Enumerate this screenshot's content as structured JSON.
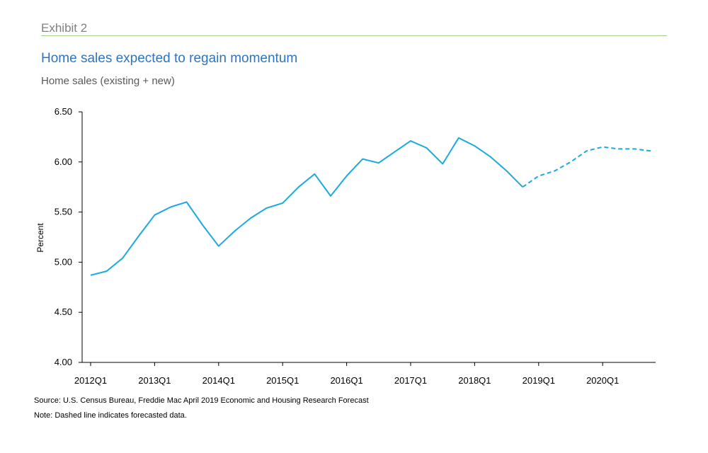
{
  "header": {
    "exhibit": "Exhibit 2",
    "title": "Home sales expected to regain momentum",
    "subtitle": "Home sales (existing + new)"
  },
  "footer": {
    "source": "Source: U.S. Census Bureau, Freddie Mac April 2019 Economic and Housing Research Forecast",
    "note": "Note: Dashed line indicates forecasted data."
  },
  "colors": {
    "line": "#1ba9e1",
    "rule": "#a8cf8e",
    "title": "#2f74c0"
  },
  "chart_data": {
    "type": "line",
    "title": "Home sales expected to regain momentum",
    "subtitle": "Home sales (existing + new)",
    "xlabel": "",
    "ylabel": "Percent",
    "ylim": [
      4.0,
      6.5
    ],
    "yticks": [
      "4.00",
      "4.50",
      "5.00",
      "5.50",
      "6.00",
      "6.50"
    ],
    "xticks": [
      "2012Q1",
      "2013Q1",
      "2014Q1",
      "2015Q1",
      "2016Q1",
      "2017Q1",
      "2018Q1",
      "2019Q1",
      "2020Q1"
    ],
    "x": [
      "2012Q1",
      "2012Q2",
      "2012Q3",
      "2012Q4",
      "2013Q1",
      "2013Q2",
      "2013Q3",
      "2013Q4",
      "2014Q1",
      "2014Q2",
      "2014Q3",
      "2014Q4",
      "2015Q1",
      "2015Q2",
      "2015Q3",
      "2015Q4",
      "2016Q1",
      "2016Q2",
      "2016Q3",
      "2016Q4",
      "2017Q1",
      "2017Q2",
      "2017Q3",
      "2017Q4",
      "2018Q1",
      "2018Q2",
      "2018Q3",
      "2018Q4",
      "2019Q1",
      "2019Q2",
      "2019Q3",
      "2019Q4",
      "2020Q1",
      "2020Q2",
      "2020Q3",
      "2020Q4"
    ],
    "series": [
      {
        "style": "solid",
        "values": [
          4.87,
          4.91,
          5.04,
          5.26,
          5.47,
          5.55,
          5.6,
          5.37,
          5.16,
          5.31,
          5.44,
          5.54,
          5.59,
          5.75,
          5.88,
          5.66,
          5.86,
          6.03,
          5.99,
          6.1,
          6.21,
          6.14,
          5.98,
          6.24,
          6.16,
          6.05,
          5.91,
          5.75,
          null,
          null,
          null,
          null,
          null,
          null,
          null,
          null
        ]
      },
      {
        "style": "dashed",
        "values": [
          null,
          null,
          null,
          null,
          null,
          null,
          null,
          null,
          null,
          null,
          null,
          null,
          null,
          null,
          null,
          null,
          null,
          null,
          null,
          null,
          null,
          null,
          null,
          null,
          null,
          null,
          null,
          5.75,
          5.86,
          5.91,
          6.0,
          6.11,
          6.15,
          6.13,
          6.13,
          6.11
        ]
      }
    ]
  }
}
